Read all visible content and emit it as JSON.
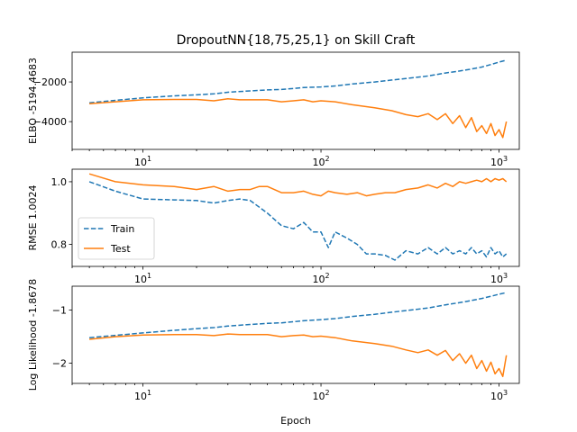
{
  "figure": {
    "title": "DropoutNN{18,75,25,1} on Skill Craft",
    "xlabel": "Epoch"
  },
  "legend": {
    "train_label": "Train",
    "test_label": "Test"
  },
  "colors": {
    "train": "#1f77b4",
    "test": "#ff7f0e"
  },
  "chart_data": [
    {
      "type": "line",
      "title": "DropoutNN{18,75,25,1} on Skill Craft",
      "xlabel": "",
      "ylabel": "ELBO -5194.4683",
      "xscale": "log",
      "xlim": [
        4,
        1300
      ],
      "ylim": [
        -5400,
        -500
      ],
      "xticks": [
        10,
        100,
        1000
      ],
      "xtick_labels": [
        "10^1",
        "10^2",
        "10^3"
      ],
      "yticks": [
        -4000,
        -2000
      ],
      "ytick_labels": [
        "−4000",
        "−2000"
      ],
      "grid": false,
      "series": [
        {
          "name": "Train",
          "style": "dashed",
          "x": [
            5,
            10,
            15,
            20,
            25,
            30,
            40,
            50,
            60,
            70,
            80,
            100,
            120,
            150,
            200,
            250,
            300,
            400,
            500,
            600,
            700,
            800,
            900,
            1000,
            1100
          ],
          "y": [
            -3050,
            -2800,
            -2700,
            -2650,
            -2600,
            -2520,
            -2450,
            -2400,
            -2380,
            -2330,
            -2280,
            -2250,
            -2200,
            -2100,
            -2000,
            -1900,
            -1830,
            -1700,
            -1550,
            -1450,
            -1350,
            -1250,
            -1120,
            -1000,
            -900
          ]
        },
        {
          "name": "Test",
          "style": "solid",
          "x": [
            5,
            7,
            10,
            15,
            20,
            25,
            30,
            35,
            40,
            50,
            60,
            70,
            80,
            90,
            100,
            120,
            150,
            200,
            250,
            300,
            350,
            400,
            450,
            500,
            550,
            600,
            650,
            700,
            750,
            800,
            850,
            900,
            950,
            1000,
            1050,
            1100
          ],
          "y": [
            -3100,
            -3000,
            -2900,
            -2880,
            -2880,
            -2950,
            -2850,
            -2900,
            -2900,
            -2900,
            -3000,
            -2950,
            -2900,
            -3000,
            -2950,
            -3000,
            -3150,
            -3300,
            -3450,
            -3650,
            -3750,
            -3600,
            -3900,
            -3600,
            -4100,
            -3700,
            -4300,
            -3800,
            -4500,
            -4200,
            -4600,
            -4100,
            -4700,
            -4400,
            -4800,
            -4000
          ]
        }
      ]
    },
    {
      "type": "line",
      "title": "",
      "xlabel": "",
      "ylabel": "RMSE 1.0024",
      "xscale": "log",
      "xlim": [
        4,
        1300
      ],
      "ylim": [
        0.73,
        1.04
      ],
      "xticks": [
        10,
        100,
        1000
      ],
      "xtick_labels": [
        "10^1",
        "10^2",
        "10^3"
      ],
      "yticks": [
        0.8,
        1.0
      ],
      "ytick_labels": [
        "0.8",
        "1.0"
      ],
      "grid": false,
      "legend_position": "center-left",
      "series": [
        {
          "name": "Train",
          "style": "dashed",
          "x": [
            5,
            7,
            10,
            15,
            20,
            25,
            30,
            35,
            40,
            50,
            60,
            70,
            80,
            90,
            100,
            110,
            120,
            140,
            160,
            180,
            200,
            230,
            260,
            300,
            350,
            400,
            450,
            500,
            550,
            600,
            650,
            700,
            750,
            800,
            850,
            900,
            950,
            1000,
            1050,
            1100
          ],
          "y": [
            1.0,
            0.97,
            0.945,
            0.942,
            0.94,
            0.932,
            0.94,
            0.945,
            0.94,
            0.9,
            0.86,
            0.85,
            0.87,
            0.84,
            0.84,
            0.79,
            0.84,
            0.82,
            0.8,
            0.77,
            0.77,
            0.765,
            0.75,
            0.78,
            0.77,
            0.79,
            0.77,
            0.79,
            0.77,
            0.78,
            0.77,
            0.79,
            0.77,
            0.78,
            0.76,
            0.79,
            0.77,
            0.78,
            0.76,
            0.77
          ]
        },
        {
          "name": "Test",
          "style": "solid",
          "x": [
            5,
            7,
            10,
            15,
            20,
            25,
            30,
            35,
            40,
            45,
            50,
            60,
            70,
            80,
            90,
            100,
            110,
            120,
            140,
            160,
            180,
            200,
            230,
            260,
            300,
            350,
            400,
            450,
            500,
            550,
            600,
            650,
            700,
            750,
            800,
            850,
            900,
            950,
            1000,
            1050,
            1100
          ],
          "y": [
            1.025,
            1.0,
            0.99,
            0.985,
            0.975,
            0.985,
            0.97,
            0.975,
            0.975,
            0.985,
            0.985,
            0.965,
            0.965,
            0.97,
            0.96,
            0.955,
            0.97,
            0.965,
            0.96,
            0.965,
            0.955,
            0.96,
            0.965,
            0.965,
            0.975,
            0.98,
            0.99,
            0.98,
            0.995,
            0.985,
            1.0,
            0.995,
            1.0,
            1.005,
            1.0,
            1.01,
            1.0,
            1.01,
            1.005,
            1.01,
            1.0
          ]
        }
      ]
    },
    {
      "type": "line",
      "title": "",
      "xlabel": "Epoch",
      "ylabel": "Log Likelihood -1.8678",
      "xscale": "log",
      "xlim": [
        4,
        1300
      ],
      "ylim": [
        -2.38,
        -0.55
      ],
      "xticks": [
        10,
        100,
        1000
      ],
      "xtick_labels": [
        "10^1",
        "10^2",
        "10^3"
      ],
      "yticks": [
        -2,
        -1
      ],
      "ytick_labels": [
        "−2",
        "−1"
      ],
      "grid": false,
      "series": [
        {
          "name": "Train",
          "style": "dashed",
          "x": [
            5,
            10,
            15,
            20,
            25,
            30,
            40,
            50,
            60,
            70,
            80,
            100,
            120,
            150,
            200,
            250,
            300,
            400,
            500,
            600,
            700,
            800,
            900,
            1000,
            1100
          ],
          "y": [
            -1.52,
            -1.43,
            -1.38,
            -1.35,
            -1.33,
            -1.3,
            -1.27,
            -1.25,
            -1.24,
            -1.22,
            -1.2,
            -1.18,
            -1.16,
            -1.12,
            -1.08,
            -1.04,
            -1.01,
            -0.96,
            -0.9,
            -0.86,
            -0.82,
            -0.78,
            -0.74,
            -0.7,
            -0.67
          ]
        },
        {
          "name": "Test",
          "style": "solid",
          "x": [
            5,
            7,
            10,
            15,
            20,
            25,
            30,
            35,
            40,
            50,
            60,
            70,
            80,
            90,
            100,
            120,
            150,
            200,
            250,
            300,
            350,
            400,
            450,
            500,
            550,
            600,
            650,
            700,
            750,
            800,
            850,
            900,
            950,
            1000,
            1050,
            1100
          ],
          "y": [
            -1.55,
            -1.5,
            -1.47,
            -1.46,
            -1.46,
            -1.48,
            -1.45,
            -1.46,
            -1.46,
            -1.46,
            -1.5,
            -1.48,
            -1.47,
            -1.5,
            -1.49,
            -1.52,
            -1.58,
            -1.63,
            -1.68,
            -1.75,
            -1.8,
            -1.75,
            -1.85,
            -1.76,
            -1.95,
            -1.82,
            -2.0,
            -1.85,
            -2.1,
            -1.95,
            -2.15,
            -1.98,
            -2.2,
            -2.1,
            -2.25,
            -1.85
          ]
        }
      ]
    }
  ]
}
